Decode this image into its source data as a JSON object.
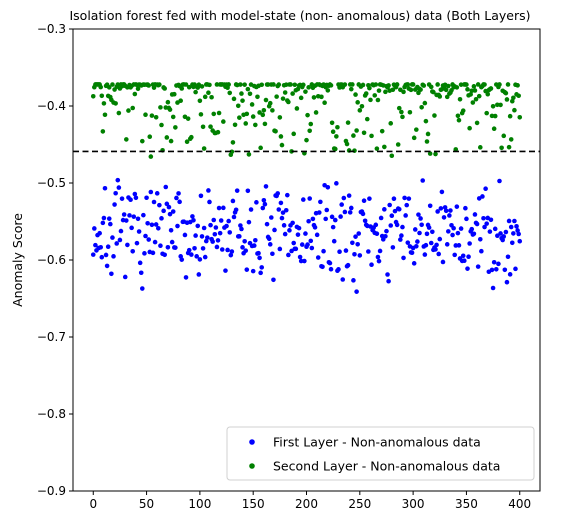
{
  "chart_data": {
    "type": "scatter",
    "title": "Isolation forest fed with model-state (non- anomalous) data (Both Layers)",
    "xlabel": "",
    "ylabel": "Anomaly Score",
    "xlim": [
      -19,
      419
    ],
    "ylim": [
      -0.9,
      -0.3
    ],
    "xticks": [
      0,
      50,
      100,
      150,
      200,
      250,
      300,
      350,
      400
    ],
    "yticks": [
      -0.9,
      -0.8,
      -0.7,
      -0.6,
      -0.5,
      -0.4,
      -0.3
    ],
    "ytick_labels": [
      "−0.9",
      "−0.8",
      "−0.7",
      "−0.6",
      "−0.5",
      "−0.4",
      "−0.3"
    ],
    "threshold": -0.459,
    "grid": false,
    "legend_position": "lower-right",
    "series": [
      {
        "name": "First Layer - Non-anomalous data",
        "color": "#0000ff",
        "marker": "circle",
        "generated": {
          "n": 401,
          "low": -0.655,
          "high": -0.478,
          "seed": 7
        }
      },
      {
        "name": "Second Layer - Non-anomalous data",
        "color": "#008000",
        "marker": "circle",
        "generated": {
          "n": 401,
          "low": -0.467,
          "high": -0.372,
          "seed": 13
        }
      }
    ]
  }
}
